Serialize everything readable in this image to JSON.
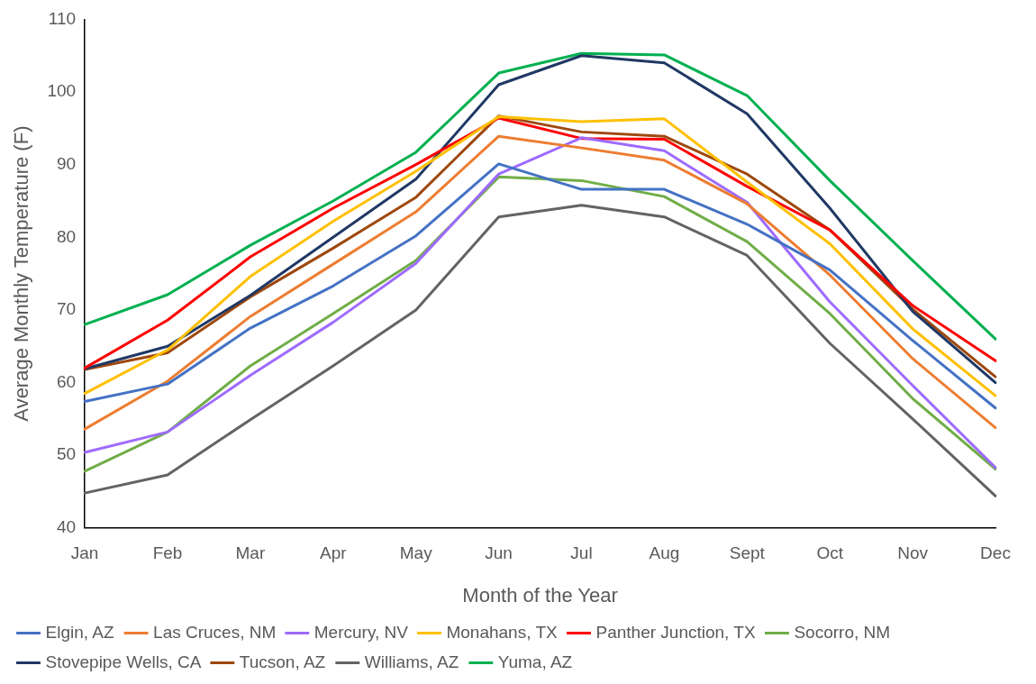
{
  "chart_data": {
    "type": "line",
    "xlabel": "Month of the Year",
    "ylabel": "Average Monthly Temperature (F)",
    "categories": [
      "Jan",
      "Feb",
      "Mar",
      "Apr",
      "May",
      "Jun",
      "Jul",
      "Aug",
      "Sept",
      "Oct",
      "Nov",
      "Dec"
    ],
    "ylim": [
      40,
      110
    ],
    "yticks": [
      40,
      50,
      60,
      70,
      80,
      90,
      100,
      110
    ],
    "grid": false,
    "legend": "bottom",
    "marker": "none",
    "line_style": "solid",
    "series": [
      {
        "name": "Elgin, AZ",
        "color": "#4472c4",
        "values": [
          57.4,
          59.8,
          67.5,
          73.3,
          80.2,
          90.1,
          86.6,
          86.6,
          81.8,
          75.5,
          65.8,
          56.5
        ]
      },
      {
        "name": "Las Cruces, NM",
        "color": "#ed7d31",
        "values": [
          53.6,
          60.2,
          69.1,
          76.3,
          83.5,
          93.9,
          92.3,
          90.6,
          84.6,
          74.8,
          63.3,
          53.8
        ]
      },
      {
        "name": "Mercury, NV",
        "color": "#9e6bff",
        "values": [
          50.4,
          53.2,
          61.0,
          68.3,
          76.4,
          88.7,
          93.7,
          91.9,
          84.8,
          71.1,
          59.6,
          48.3
        ]
      },
      {
        "name": "Monahans, TX",
        "color": "#ffc000",
        "values": [
          58.5,
          64.5,
          74.6,
          82.2,
          89.1,
          96.6,
          95.9,
          96.3,
          87.6,
          79.1,
          67.4,
          58.2
        ]
      },
      {
        "name": "Panther Junction, TX",
        "color": "#ff0000",
        "values": [
          62.0,
          68.6,
          77.3,
          84.0,
          90.0,
          96.4,
          93.6,
          93.5,
          87.0,
          81.0,
          70.6,
          63.0
        ]
      },
      {
        "name": "Socorro, NM",
        "color": "#70ad47",
        "values": [
          47.8,
          53.2,
          62.3,
          69.5,
          76.8,
          88.3,
          87.8,
          85.6,
          79.4,
          69.5,
          57.8,
          48.1
        ]
      },
      {
        "name": "Stovepipe Wells, CA",
        "color": "#203864",
        "values": [
          61.9,
          65.0,
          72.0,
          80.0,
          88.0,
          101.0,
          105.0,
          104.0,
          97.0,
          84.0,
          69.8,
          60.0
        ]
      },
      {
        "name": "Tucson, AZ",
        "color": "#9e480e",
        "values": [
          61.8,
          64.1,
          71.8,
          78.5,
          85.5,
          96.7,
          94.5,
          93.9,
          88.7,
          81.0,
          70.1,
          60.8
        ]
      },
      {
        "name": "Williams, AZ",
        "color": "#636363",
        "values": [
          44.8,
          47.3,
          54.9,
          62.3,
          70.0,
          82.8,
          84.4,
          82.8,
          77.5,
          65.4,
          55.0,
          44.4
        ]
      },
      {
        "name": "Yuma, AZ",
        "color": "#00b050",
        "values": [
          68.0,
          72.1,
          78.9,
          85.0,
          91.7,
          102.6,
          105.3,
          105.1,
          99.5,
          87.8,
          76.8,
          66.0
        ]
      }
    ]
  }
}
